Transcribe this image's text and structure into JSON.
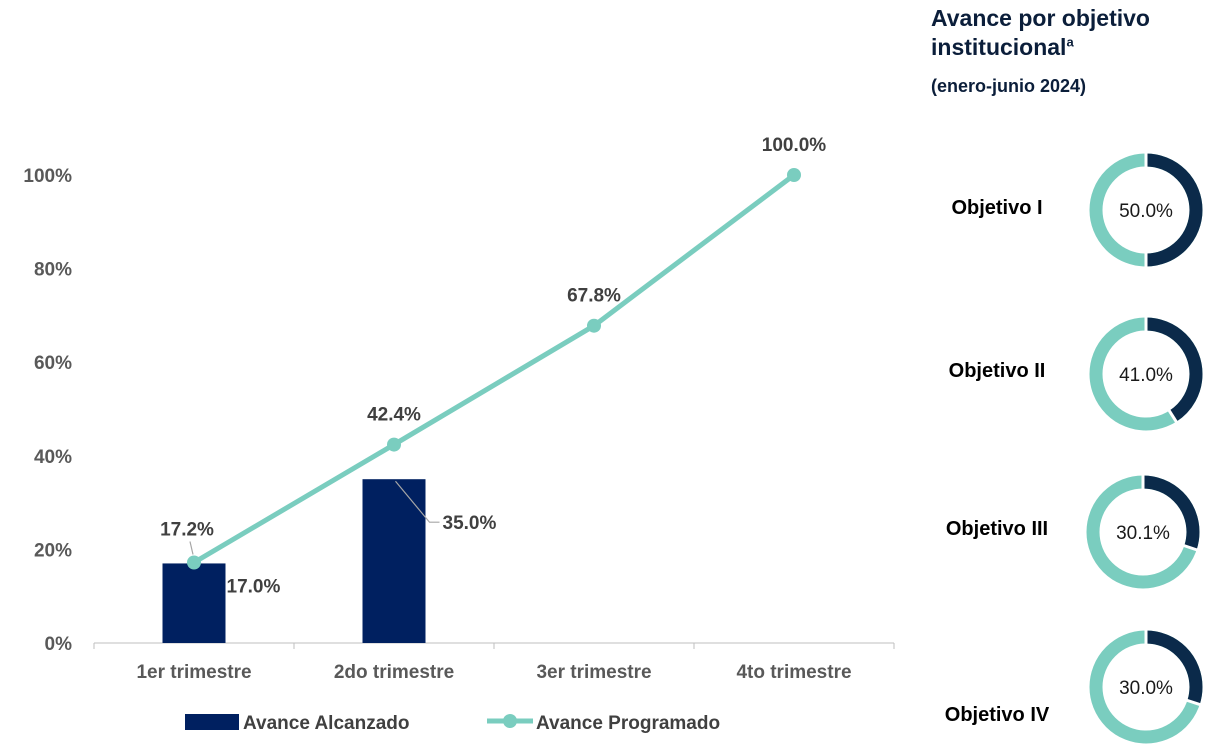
{
  "chart_data": [
    {
      "type": "bar+line",
      "categories": [
        "1er trimestre",
        "2do trimestre",
        "3er trimestre",
        "4to trimestre"
      ],
      "series": [
        {
          "name": "Avance Alcanzado",
          "type": "bar",
          "values": [
            17.0,
            35.0,
            null,
            null
          ],
          "labels": [
            "17.0%",
            "35.0%",
            "",
            ""
          ],
          "color": "#002060"
        },
        {
          "name": "Avance Programado",
          "type": "line",
          "values": [
            17.2,
            42.4,
            67.8,
            100.0
          ],
          "labels": [
            "17.2%",
            "42.4%",
            "67.8%",
            "100.0%"
          ],
          "color": "#7acdbf"
        }
      ],
      "y_ticks": [
        "0%",
        "20%",
        "40%",
        "60%",
        "80%",
        "100%"
      ],
      "ylim": [
        0,
        100
      ],
      "legend": "bottom",
      "grid": false
    },
    {
      "type": "pie",
      "title": "Avance por objetivo institucional",
      "title_superscript": "a",
      "subtitle": "(enero-junio 2024)",
      "items": [
        {
          "label": "Objetivo I",
          "value": 50.0,
          "display": "50.0%"
        },
        {
          "label": "Objetivo II",
          "value": 41.0,
          "display": "41.0%"
        },
        {
          "label": "Objetivo III",
          "value": 30.1,
          "display": "30.1%"
        },
        {
          "label": "Objetivo IV",
          "value": 30.0,
          "display": "30.0%"
        }
      ],
      "colors": {
        "achieved": "#0b2a4a",
        "remaining": "#7acdbf"
      }
    }
  ]
}
